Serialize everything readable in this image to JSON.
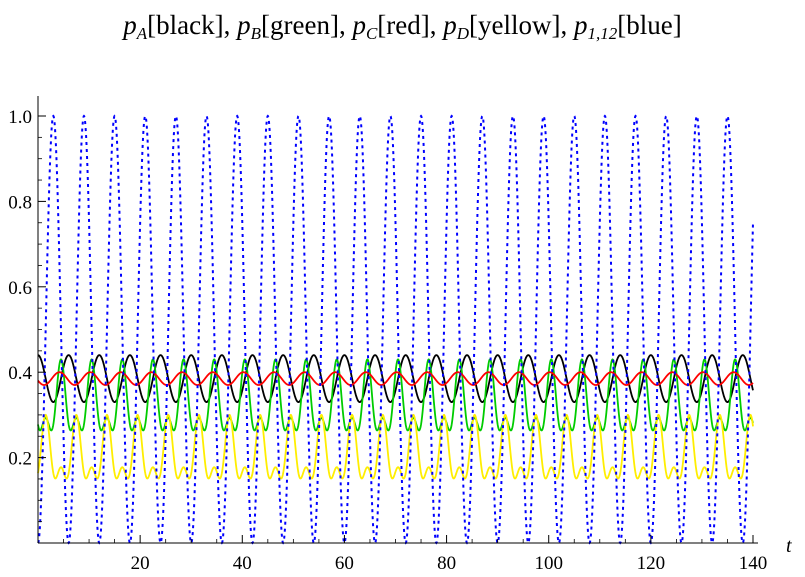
{
  "chart_data": {
    "type": "line",
    "title": "p_A[black], p_B[green], p_C[red], p_D[yellow], p_1,12[blue]",
    "title_parts": {
      "pA": "A",
      "pB": "B",
      "pC": "C",
      "pD": "D",
      "p112": "1,12",
      "black": "[black], ",
      "green": "[green], ",
      "red": "[red], ",
      "yellow": "[yellow], ",
      "blue": "[blue]"
    },
    "xlabel": "t",
    "ylabel": "",
    "xlim": [
      0,
      140
    ],
    "ylim": [
      0,
      1.0
    ],
    "x_ticks": [
      20,
      40,
      60,
      80,
      100,
      120,
      140
    ],
    "x_tick_labels": [
      "20",
      "40",
      "60",
      "80",
      "100",
      "120",
      "140"
    ],
    "y_ticks": [
      0.2,
      0.4,
      0.6,
      0.8,
      1.0
    ],
    "y_tick_labels": [
      "0.2",
      "0.4",
      "0.6",
      "0.8",
      "1.0"
    ],
    "grid": false,
    "legend": "none",
    "period": 6.0,
    "series": [
      {
        "color": "#000000",
        "style": "solid",
        "min": 0.33,
        "max": 0.44,
        "shape": "sine",
        "phase": 0.0
      },
      {
        "color": "#00cc00",
        "style": "solid",
        "min": 0.24,
        "max": 0.43,
        "shape": "double",
        "phase": 0.25
      },
      {
        "color": "#ff0000",
        "style": "solid",
        "min": 0.37,
        "max": 0.4,
        "shape": "sine",
        "phase": 0.3
      },
      {
        "color": "#ffee00",
        "style": "solid",
        "min": 0.13,
        "max": 0.3,
        "shape": "double",
        "phase": 0.75
      },
      {
        "color": "#0000ff",
        "style": "dotted",
        "min": 0.0,
        "max": 1.0,
        "shape": "sine",
        "phase": 0.5
      }
    ]
  }
}
